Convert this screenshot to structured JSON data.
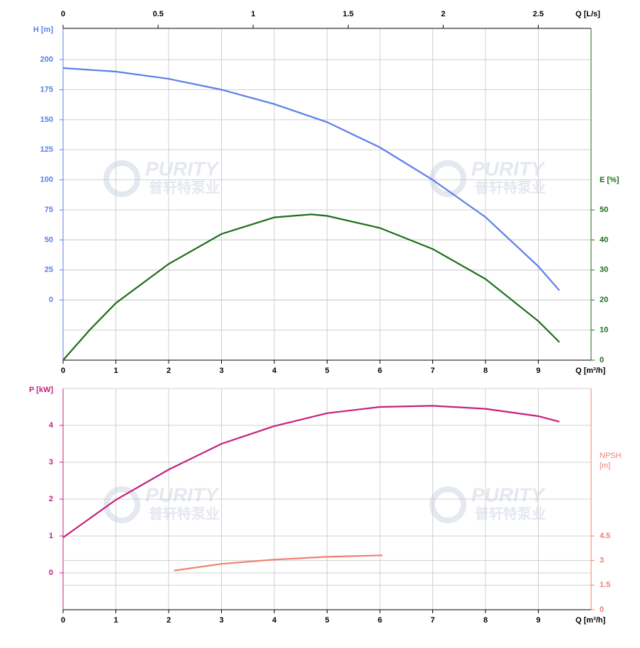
{
  "watermark": [
    "PURITY",
    "普轩特泵业"
  ],
  "chart_data": [
    {
      "type": "line",
      "xlabel": "Q [m³/h]",
      "x2label": "Q [L/s]",
      "ylabel": "H [m]",
      "y2label": "E [%]",
      "xlim": [
        0,
        10
      ],
      "xticks": [
        0,
        1,
        2,
        3,
        4,
        5,
        6,
        7,
        8,
        9
      ],
      "x2lim": [
        0,
        2.778
      ],
      "x2ticks": [
        0,
        0.5,
        1,
        1.5,
        2,
        2.5
      ],
      "ylim": [
        -50,
        226
      ],
      "yticks": [
        0,
        25,
        50,
        75,
        100,
        125,
        150,
        175,
        200
      ],
      "y2lim": [
        0,
        110.4
      ],
      "y2ticks": [
        0,
        10,
        20,
        30,
        40,
        50
      ],
      "grid": true,
      "series": [
        {
          "color": "#5b7fe6",
          "x": [
            0,
            1,
            2,
            3,
            4,
            5,
            6,
            7,
            8,
            9,
            9.4
          ],
          "values": [
            193,
            190,
            184,
            175,
            163,
            148,
            127,
            100,
            69,
            28,
            8
          ]
        },
        {
          "color": "#1b6e1b",
          "axis": "y2",
          "x": [
            0,
            0.5,
            1,
            2,
            3,
            4,
            4.7,
            5,
            6,
            7,
            8,
            9,
            9.4
          ],
          "values": [
            0,
            10,
            19,
            32,
            42,
            47.5,
            48.5,
            48,
            44,
            37,
            27,
            13,
            6
          ]
        }
      ]
    },
    {
      "type": "line",
      "xlabel": "Q [m³/h]",
      "ylabel": "P [kW]",
      "y2label": "NPSH [m]",
      "xlim": [
        0,
        10
      ],
      "xticks": [
        0,
        1,
        2,
        3,
        4,
        5,
        6,
        7,
        8,
        9
      ],
      "ylim": [
        -1,
        5
      ],
      "yticks": [
        0,
        1,
        2,
        3,
        4
      ],
      "y2lim": [
        0,
        13.5
      ],
      "y2ticks": [
        0,
        1.5,
        3,
        4.5
      ],
      "grid": true,
      "series": [
        {
          "color": "#c4207f",
          "x": [
            0,
            1,
            2,
            3,
            4,
            5,
            6,
            7,
            8,
            9,
            9.4
          ],
          "values": [
            0.96,
            1.98,
            2.8,
            3.5,
            3.98,
            4.33,
            4.5,
            4.53,
            4.45,
            4.25,
            4.1
          ]
        },
        {
          "color": "#f08070",
          "axis": "y2",
          "x": [
            2.1,
            3,
            4,
            5,
            6.05
          ],
          "values": [
            2.39,
            2.8,
            3.06,
            3.23,
            3.32
          ]
        }
      ]
    }
  ]
}
